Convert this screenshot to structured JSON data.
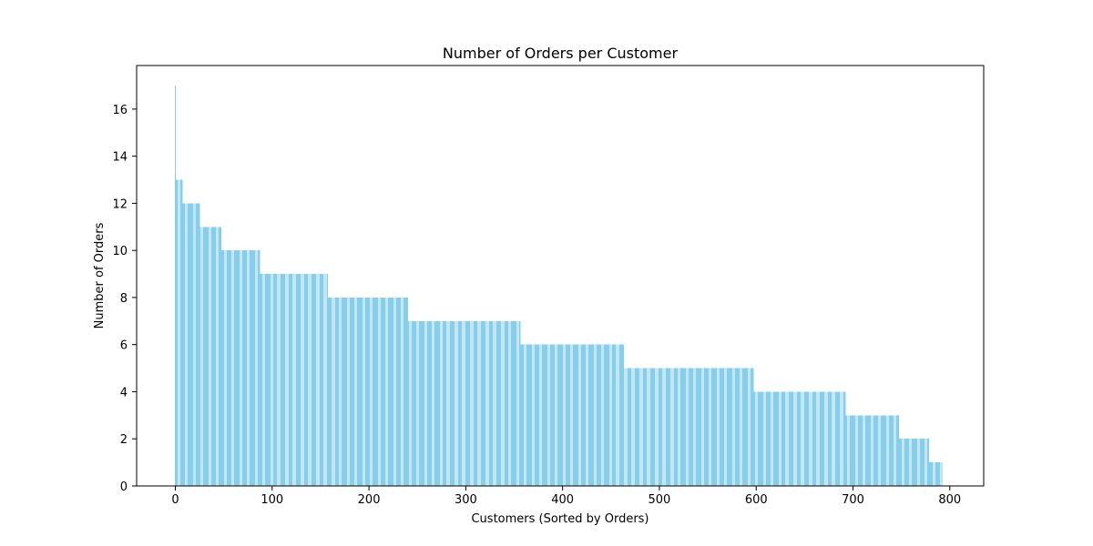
{
  "chart_data": {
    "type": "bar",
    "title": "Number of Orders per Customer",
    "xlabel": "Customers (Sorted by Orders)",
    "ylabel": "Number of Orders",
    "xlim": [
      -40,
      835
    ],
    "ylim": [
      0,
      17.85
    ],
    "x_ticks": [
      0,
      100,
      200,
      300,
      400,
      500,
      600,
      700,
      800
    ],
    "y_ticks": [
      0,
      2,
      4,
      6,
      8,
      10,
      12,
      14,
      16
    ],
    "grid": false,
    "legend": "none",
    "bar_color": "#87ceeb",
    "series": [
      {
        "values_by_rank_range": [
          {
            "x_from": 0,
            "x_to": 0,
            "value": 17
          },
          {
            "x_from": 1,
            "x_to": 7,
            "value": 13
          },
          {
            "x_from": 8,
            "x_to": 25,
            "value": 12
          },
          {
            "x_from": 26,
            "x_to": 47,
            "value": 11
          },
          {
            "x_from": 48,
            "x_to": 87,
            "value": 10
          },
          {
            "x_from": 88,
            "x_to": 157,
            "value": 9
          },
          {
            "x_from": 158,
            "x_to": 240,
            "value": 8
          },
          {
            "x_from": 241,
            "x_to": 356,
            "value": 7
          },
          {
            "x_from": 357,
            "x_to": 463,
            "value": 6
          },
          {
            "x_from": 464,
            "x_to": 597,
            "value": 5
          },
          {
            "x_from": 598,
            "x_to": 692,
            "value": 4
          },
          {
            "x_from": 693,
            "x_to": 747,
            "value": 3
          },
          {
            "x_from": 748,
            "x_to": 778,
            "value": 2
          },
          {
            "x_from": 779,
            "x_to": 792,
            "value": 1
          }
        ]
      }
    ]
  }
}
